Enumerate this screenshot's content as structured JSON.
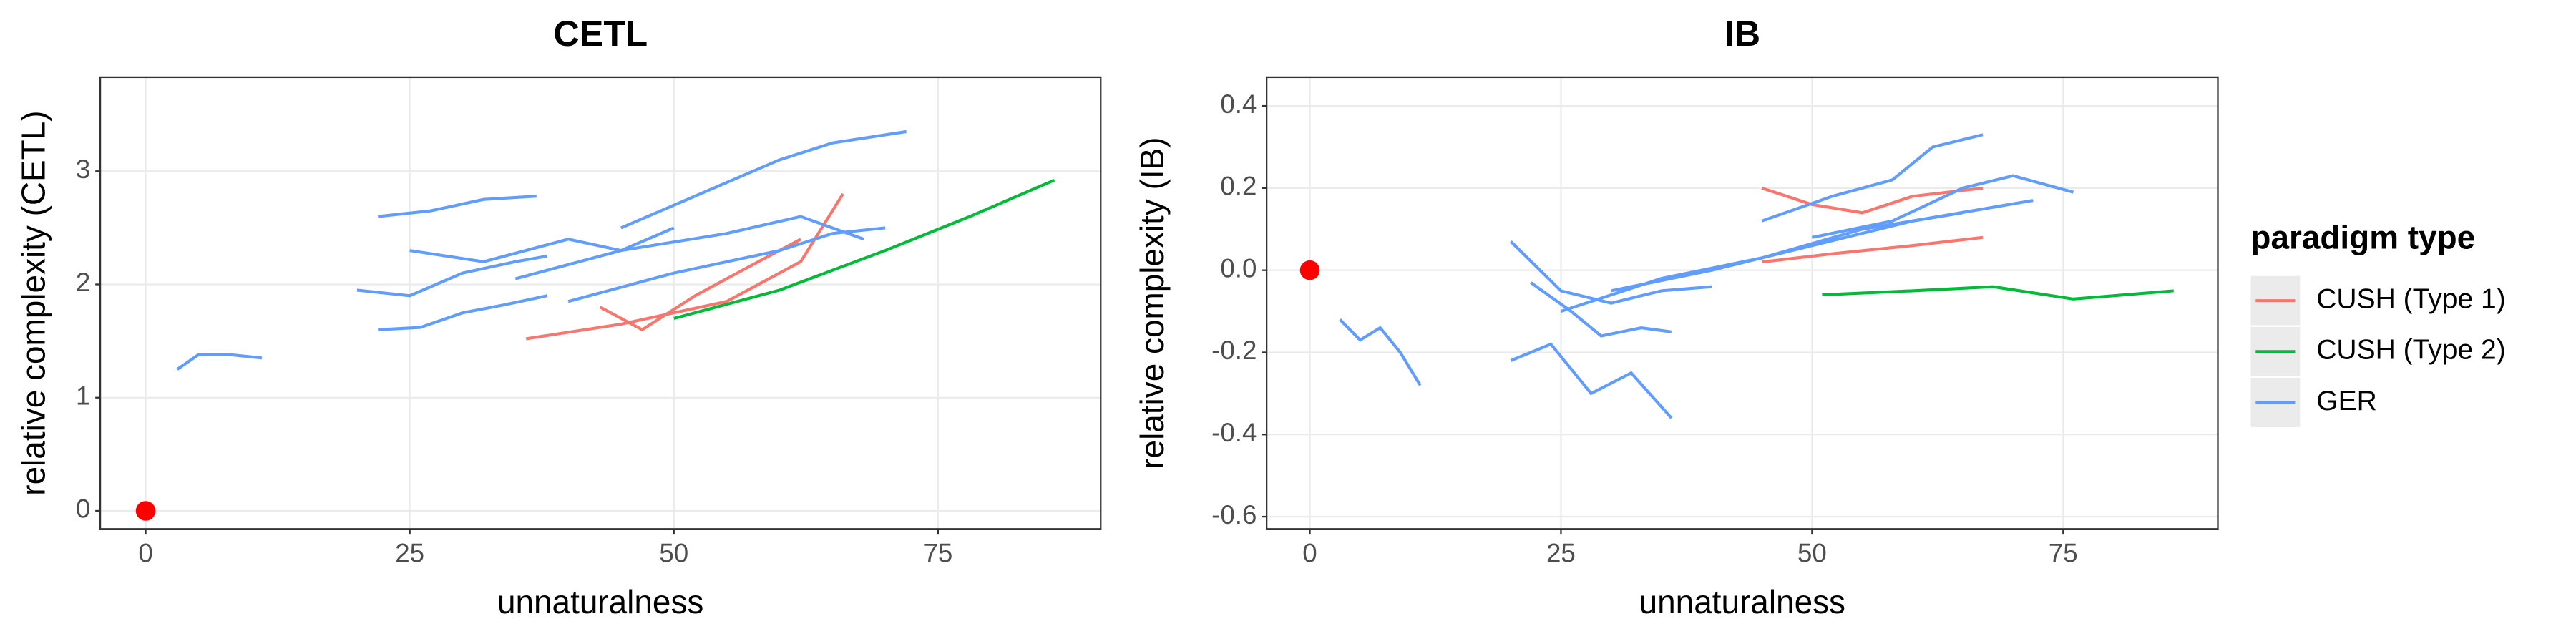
{
  "chart_data": [
    {
      "type": "line",
      "title": "CETL",
      "x_label": "unnaturalness",
      "y_label": "relative complexity (CETL)",
      "xlim": [
        -4.3,
        90.4
      ],
      "xticks": [
        0,
        25,
        50,
        75
      ],
      "ylim": [
        -0.16,
        3.83
      ],
      "yticks": [
        0,
        1,
        2,
        3
      ],
      "grid": true,
      "highlight": {
        "x": 0,
        "y": 0,
        "color": "#ff0000"
      },
      "series": [
        {
          "name": "CUSH (Type 1)",
          "color": "#f8766d",
          "lines": [
            {
              "x": [
                36,
                45,
                55,
                62,
                66
              ],
              "values": [
                1.52,
                1.65,
                1.85,
                2.2,
                2.8
              ]
            },
            {
              "x": [
                43,
                47,
                52,
                58,
                62
              ],
              "values": [
                1.8,
                1.6,
                1.9,
                2.2,
                2.4
              ]
            }
          ]
        },
        {
          "name": "CUSH (Type 2)",
          "color": "#00ba38",
          "lines": [
            {
              "x": [
                50,
                60,
                70,
                78,
                86
              ],
              "values": [
                1.7,
                1.95,
                2.3,
                2.6,
                2.92
              ]
            }
          ]
        },
        {
          "name": "GER",
          "color": "#619cff",
          "lines": [
            {
              "x": [
                3,
                5,
                8,
                11
              ],
              "values": [
                1.25,
                1.38,
                1.38,
                1.35
              ]
            },
            {
              "x": [
                20,
                25,
                30,
                35,
                38
              ],
              "values": [
                1.95,
                1.9,
                2.1,
                2.2,
                2.25
              ]
            },
            {
              "x": [
                22,
                27,
                32,
                37
              ],
              "values": [
                2.6,
                2.65,
                2.75,
                2.78
              ]
            },
            {
              "x": [
                22,
                26,
                30,
                34,
                38
              ],
              "values": [
                1.6,
                1.62,
                1.75,
                1.82,
                1.9
              ]
            },
            {
              "x": [
                25,
                32,
                40,
                45,
                50
              ],
              "values": [
                2.3,
                2.2,
                2.4,
                2.3,
                2.5
              ]
            },
            {
              "x": [
                35,
                45,
                55,
                62,
                68
              ],
              "values": [
                2.05,
                2.3,
                2.45,
                2.6,
                2.4
              ]
            },
            {
              "x": [
                45,
                50,
                55,
                60,
                65,
                72
              ],
              "values": [
                2.5,
                2.7,
                2.9,
                3.1,
                3.25,
                3.35
              ]
            },
            {
              "x": [
                40,
                50,
                60,
                65,
                70
              ],
              "values": [
                1.85,
                2.1,
                2.3,
                2.45,
                2.5
              ]
            }
          ]
        }
      ]
    },
    {
      "type": "line",
      "title": "IB",
      "x_label": "unnaturalness",
      "y_label": "relative complexity (IB)",
      "xlim": [
        -4.3,
        90.4
      ],
      "xticks": [
        0,
        25,
        50,
        75
      ],
      "ylim": [
        -0.63,
        0.47
      ],
      "yticks": [
        0.4,
        0.2,
        {
          "value": 0,
          "label": "0.0"
        },
        -0.2,
        -0.4,
        -0.6
      ],
      "grid": true,
      "highlight": {
        "x": 0,
        "y": 0,
        "color": "#ff0000"
      },
      "legend_title": "paradigm type",
      "legend": "right",
      "series": [
        {
          "name": "CUSH (Type 1)",
          "color": "#f8766d",
          "lines": [
            {
              "x": [
                45,
                50,
                55,
                60,
                67
              ],
              "values": [
                0.2,
                0.16,
                0.14,
                0.18,
                0.2
              ]
            },
            {
              "x": [
                45,
                52,
                60,
                67
              ],
              "values": [
                0.02,
                0.04,
                0.06,
                0.08
              ]
            }
          ]
        },
        {
          "name": "CUSH (Type 2)",
          "color": "#00ba38",
          "lines": [
            {
              "x": [
                51,
                60,
                68,
                76,
                86
              ],
              "values": [
                -0.06,
                -0.05,
                -0.04,
                -0.07,
                -0.05
              ]
            }
          ]
        },
        {
          "name": "GER",
          "color": "#619cff",
          "lines": [
            {
              "x": [
                3,
                5,
                7,
                9,
                11
              ],
              "values": [
                -0.12,
                -0.17,
                -0.14,
                -0.2,
                -0.28
              ]
            },
            {
              "x": [
                20,
                24,
                28,
                32,
                36
              ],
              "values": [
                -0.22,
                -0.18,
                -0.3,
                -0.25,
                -0.36
              ]
            },
            {
              "x": [
                20,
                25,
                30,
                35,
                40
              ],
              "values": [
                0.07,
                -0.05,
                -0.08,
                -0.05,
                -0.04
              ]
            },
            {
              "x": [
                22,
                26,
                29,
                33,
                36
              ],
              "values": [
                -0.03,
                -0.1,
                -0.16,
                -0.14,
                -0.15
              ]
            },
            {
              "x": [
                25,
                35,
                45,
                55,
                65
              ],
              "values": [
                -0.1,
                -0.02,
                0.03,
                0.1,
                0.14
              ]
            },
            {
              "x": [
                30,
                40,
                50,
                60,
                72
              ],
              "values": [
                -0.05,
                0.0,
                0.06,
                0.12,
                0.17
              ]
            },
            {
              "x": [
                45,
                52,
                58,
                62,
                67
              ],
              "values": [
                0.12,
                0.18,
                0.22,
                0.3,
                0.33
              ]
            },
            {
              "x": [
                50,
                58,
                65,
                70,
                76
              ],
              "values": [
                0.08,
                0.12,
                0.2,
                0.23,
                0.19
              ]
            }
          ]
        }
      ]
    }
  ]
}
